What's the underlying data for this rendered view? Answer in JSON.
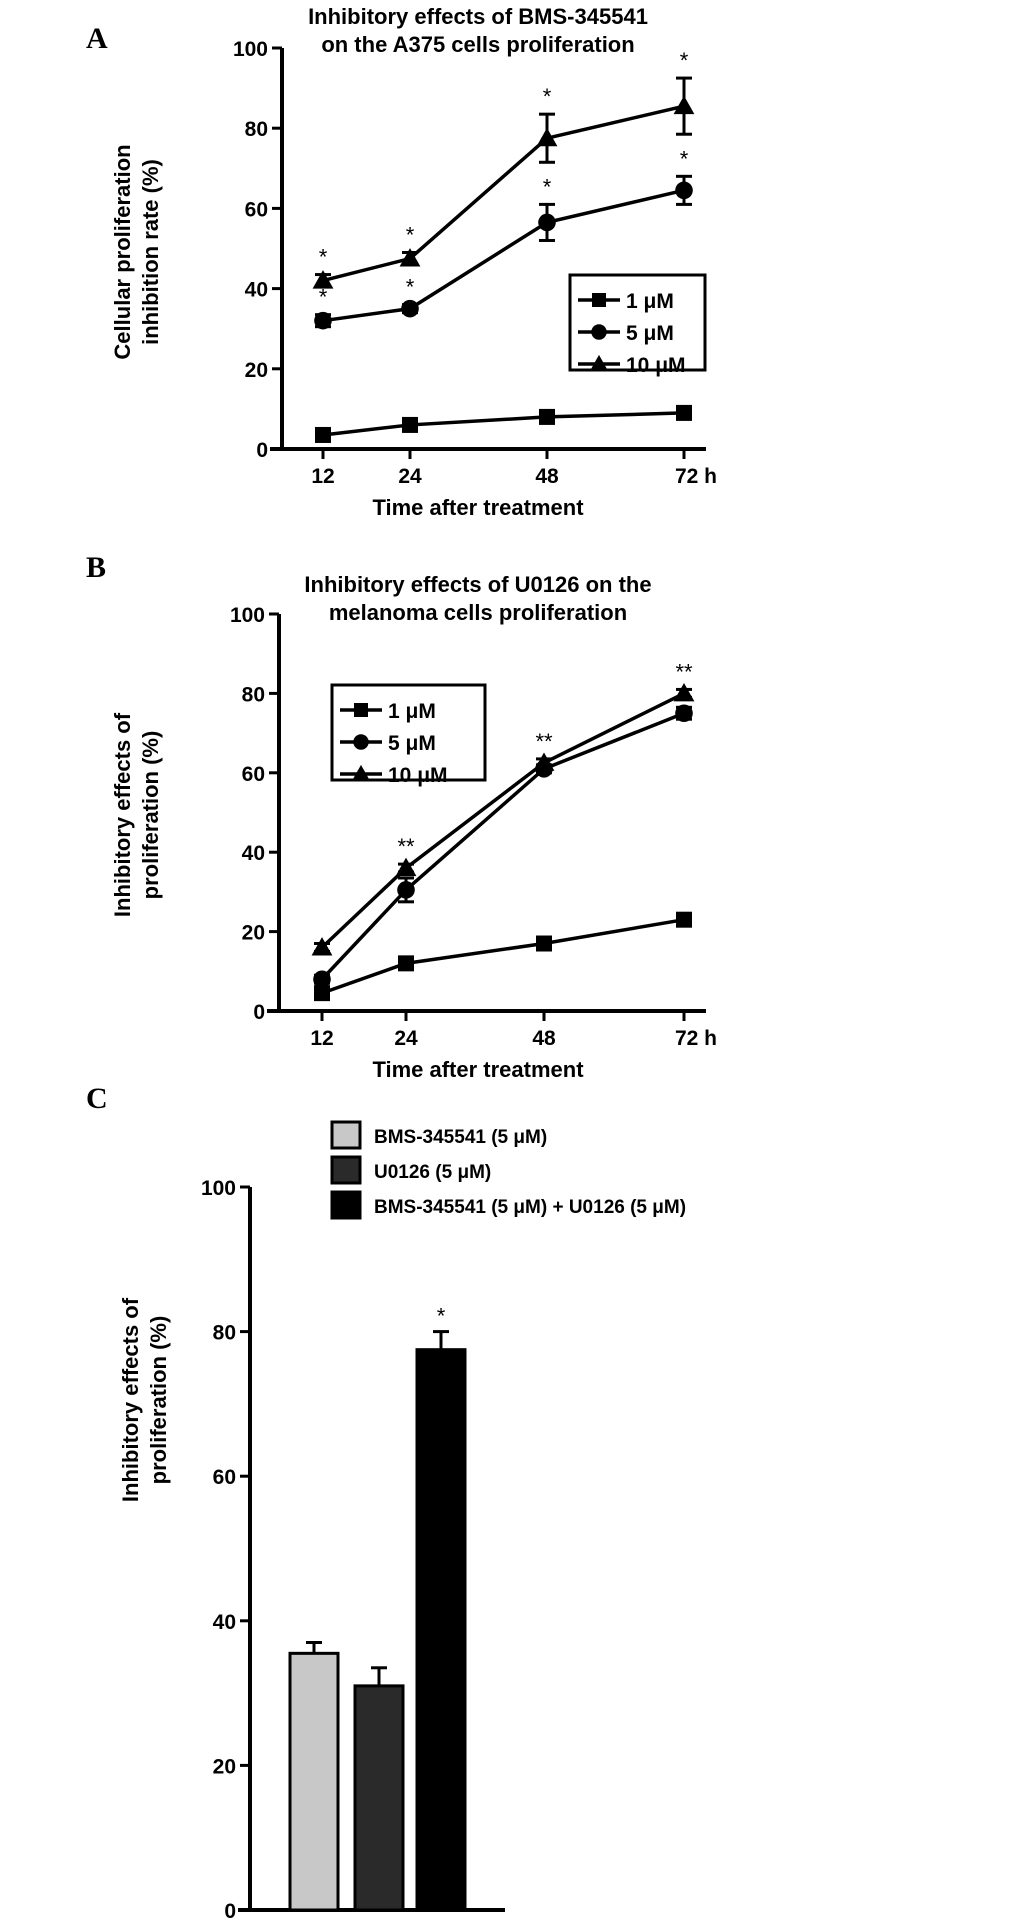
{
  "chart_data": [
    {
      "panel": "A",
      "type": "line",
      "title": [
        "Inhibitory effects of BMS-345541",
        "on the A375 cells proliferation"
      ],
      "xlabel": "Time after treatment",
      "ylabel": [
        "Cellular proliferation",
        "inhibition rate (%)"
      ],
      "categories": [
        "12",
        "24",
        "48",
        "72 h"
      ],
      "ylim": [
        0,
        100
      ],
      "yticks": [
        0,
        20,
        40,
        60,
        80,
        100
      ],
      "grid": false,
      "legend_placement": "right",
      "series": [
        {
          "name": "1 μM",
          "marker": "square",
          "values": [
            3.5,
            6,
            8,
            9
          ],
          "errors": [
            1,
            1,
            1,
            1
          ],
          "stars": [
            "",
            "",
            "",
            ""
          ]
        },
        {
          "name": "5 μM",
          "marker": "circle",
          "values": [
            32,
            35,
            56.5,
            64.5
          ],
          "errors": [
            1.5,
            1,
            4.5,
            3.5
          ],
          "stars": [
            "*",
            "*",
            "*",
            "*"
          ]
        },
        {
          "name": "10 μM",
          "marker": "triangle",
          "values": [
            42,
            47.5,
            77.5,
            85.5
          ],
          "errors": [
            1.5,
            1.5,
            6,
            7
          ],
          "stars": [
            "*",
            "*",
            "*",
            "*"
          ]
        }
      ]
    },
    {
      "panel": "B",
      "type": "line",
      "title": [
        "Inhibitory effects of U0126 on the",
        "melanoma cells proliferation"
      ],
      "xlabel": "Time after treatment",
      "ylabel": [
        "Inhibitory effects of",
        "proliferation (%)"
      ],
      "categories": [
        "12",
        "24",
        "48",
        "72 h"
      ],
      "ylim": [
        0,
        100
      ],
      "yticks": [
        0,
        20,
        40,
        60,
        80,
        100
      ],
      "grid": false,
      "legend_placement": "top-left",
      "series": [
        {
          "name": "1 μM",
          "marker": "square",
          "values": [
            4.5,
            12,
            17,
            23
          ],
          "errors": [
            1,
            1,
            1,
            1
          ],
          "stars": [
            "",
            "",
            "",
            ""
          ]
        },
        {
          "name": "5 μM",
          "marker": "circle",
          "values": [
            8,
            30.5,
            61,
            75
          ],
          "errors": [
            1,
            3,
            1,
            1.5
          ],
          "stars": [
            "",
            "",
            "",
            ""
          ]
        },
        {
          "name": "10 μM",
          "marker": "triangle",
          "values": [
            16,
            36,
            62.5,
            80
          ],
          "errors": [
            1,
            1,
            1,
            1
          ],
          "stars": [
            "",
            "**",
            "**",
            "**"
          ]
        }
      ]
    },
    {
      "panel": "C",
      "type": "bar",
      "ylabel": [
        "Inhibitory effects of",
        "proliferation (%)"
      ],
      "ylim": [
        0,
        100
      ],
      "yticks": [
        0,
        20,
        40,
        60,
        80,
        100
      ],
      "grid": false,
      "legend_placement": "top",
      "categories": [
        "BMS-345541 (5 μM)",
        "U0126 (5 μM)",
        "BMS-345541 (5 μM) + U0126 (5 μM)"
      ],
      "values": [
        35.5,
        31,
        77.5
      ],
      "errors": [
        1.5,
        2.5,
        2.5
      ],
      "stars": [
        "",
        "",
        "*"
      ],
      "colors": [
        "#c8c8c8",
        "#2a2a2a",
        "#000000"
      ]
    }
  ]
}
